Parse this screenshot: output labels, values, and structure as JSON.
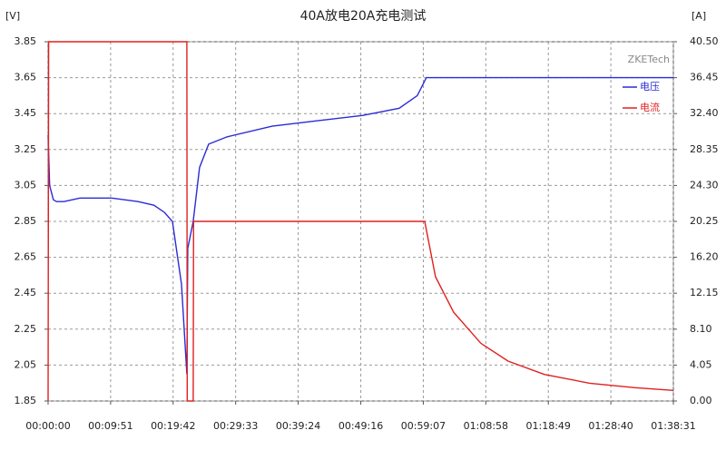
{
  "chart_data": {
    "type": "line",
    "title": "40A放电20A充电测试",
    "ylabel": "[V]",
    "y2label": "[A]",
    "annotation": "ZKETech",
    "xlim": [
      0,
      5911
    ],
    "xticks": [
      {
        "value": 0,
        "label": "00:00:00"
      },
      {
        "value": 591,
        "label": "00:09:51"
      },
      {
        "value": 1182,
        "label": "00:19:42"
      },
      {
        "value": 1773,
        "label": "00:29:33"
      },
      {
        "value": 2364,
        "label": "00:39:24"
      },
      {
        "value": 2956,
        "label": "00:49:16"
      },
      {
        "value": 3547,
        "label": "00:59:07"
      },
      {
        "value": 4138,
        "label": "01:08:58"
      },
      {
        "value": 4729,
        "label": "01:18:49"
      },
      {
        "value": 5320,
        "label": "01:28:40"
      },
      {
        "value": 5911,
        "label": "01:38:31"
      }
    ],
    "ylim": [
      1.85,
      3.85
    ],
    "yticks": [
      1.85,
      2.05,
      2.25,
      2.45,
      2.65,
      2.85,
      3.05,
      3.25,
      3.45,
      3.65,
      3.85
    ],
    "y2lim": [
      0,
      40.5
    ],
    "y2ticks": [
      {
        "value": 0,
        "label": "0.00"
      },
      4.05,
      {
        "value": 8.1,
        "label": "8.10"
      },
      12.15,
      {
        "value": 16.2,
        "label": "16.20"
      },
      20.25,
      {
        "value": 24.3,
        "label": "24.30"
      },
      28.35,
      {
        "value": 32.4,
        "label": "32.40"
      },
      36.45,
      {
        "value": 40.5,
        "label": "40.50"
      }
    ],
    "grid": true,
    "legend": "top-right",
    "series": [
      {
        "name": "电压",
        "color": "#2b2bd6",
        "x": [
          0,
          15,
          50,
          80,
          150,
          300,
          600,
          850,
          1000,
          1100,
          1175,
          1261,
          1312,
          1320,
          1372,
          1432,
          1518,
          1690,
          2118,
          2547,
          2976,
          3319,
          3490,
          3576,
          5911
        ],
        "values": [
          3.33,
          3.05,
          2.97,
          2.96,
          2.96,
          2.98,
          2.98,
          2.96,
          2.94,
          2.9,
          2.85,
          2.5,
          2.0,
          2.7,
          2.85,
          3.15,
          3.28,
          3.32,
          3.38,
          3.41,
          3.44,
          3.48,
          3.55,
          3.65,
          3.65
        ]
      },
      {
        "name": "电流",
        "color": "#e02020",
        "axis": "y2",
        "x": [
          0,
          5,
          1312,
          1315,
          1372,
          1375,
          3560,
          3662,
          3834,
          4091,
          4348,
          4691,
          5120,
          5549,
          5911
        ],
        "values": [
          0,
          40.5,
          40.5,
          0,
          0,
          20.25,
          20.25,
          14,
          10,
          6.5,
          4.5,
          3,
          2,
          1.5,
          1.2
        ]
      }
    ]
  }
}
